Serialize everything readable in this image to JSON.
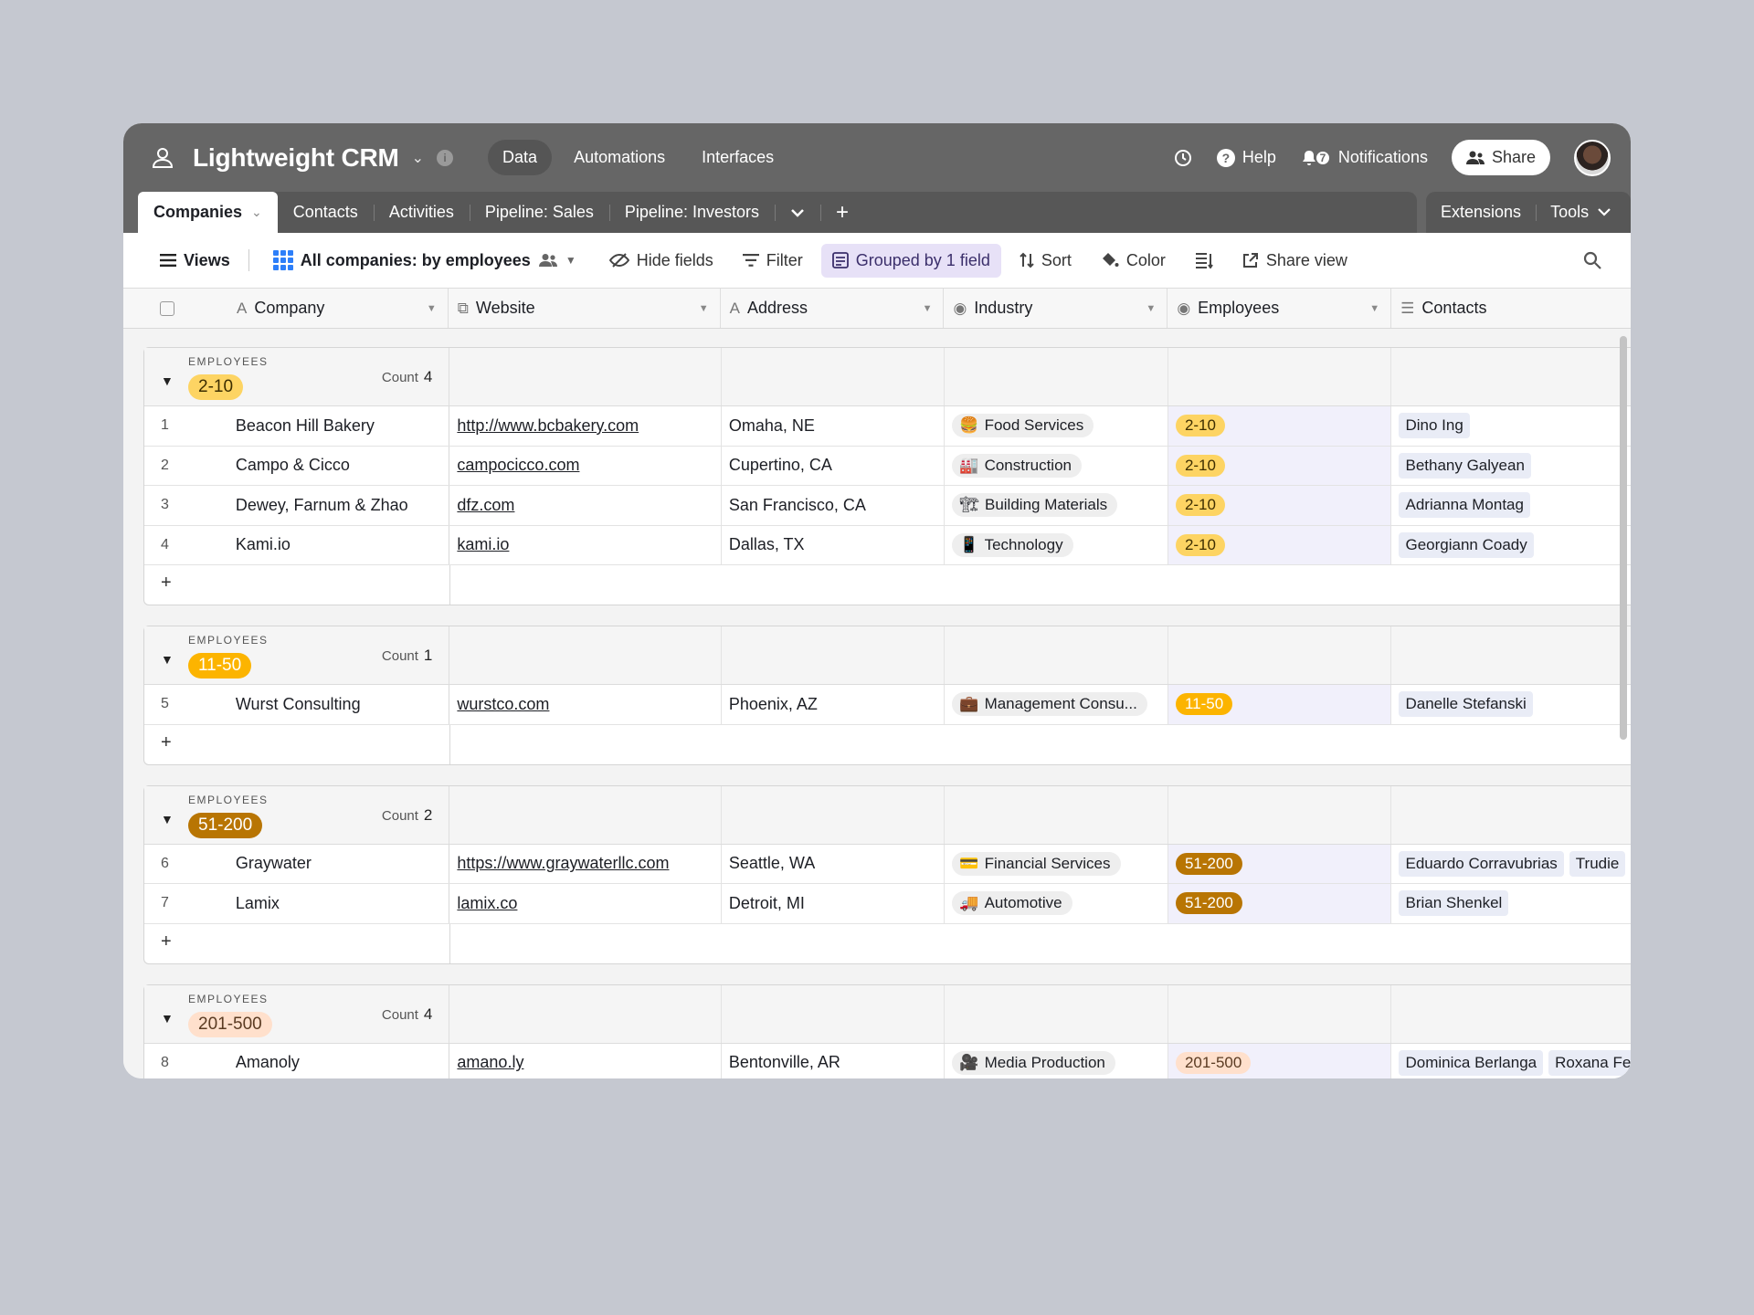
{
  "app": {
    "title": "Lightweight CRM",
    "nav": [
      "Data",
      "Automations",
      "Interfaces"
    ],
    "help": "Help",
    "notifications": "Notifications",
    "notification_count": "7",
    "share": "Share"
  },
  "tabs": {
    "items": [
      "Companies",
      "Contacts",
      "Activities",
      "Pipeline: Sales",
      "Pipeline: Investors"
    ],
    "extensions": "Extensions",
    "tools": "Tools"
  },
  "toolbar": {
    "views": "Views",
    "view_name": "All companies: by employees",
    "hide_fields": "Hide fields",
    "filter": "Filter",
    "grouped": "Grouped by 1 field",
    "sort": "Sort",
    "color": "Color",
    "share_view": "Share view"
  },
  "columns": [
    "Company",
    "Website",
    "Address",
    "Industry",
    "Employees",
    "Contacts"
  ],
  "group_label": "EMPLOYEES",
  "count_label": "Count",
  "groups": [
    {
      "value": "2-10",
      "count": "4",
      "rows": [
        {
          "n": "1",
          "company": "Beacon Hill Bakery",
          "website": "http://www.bcbakery.com",
          "address": "Omaha, NE",
          "industry_icon": "🍔",
          "industry": "Food Services",
          "employees": "2-10",
          "contacts": [
            "Dino Ing"
          ]
        },
        {
          "n": "2",
          "company": "Campo & Cicco",
          "website": "campocicco.com",
          "address": "Cupertino, CA",
          "industry_icon": "🏭",
          "industry": "Construction",
          "employees": "2-10",
          "contacts": [
            "Bethany Galyean"
          ]
        },
        {
          "n": "3",
          "company": "Dewey, Farnum & Zhao",
          "website": "dfz.com",
          "address": "San Francisco, CA",
          "industry_icon": "🏗",
          "industry": "Building Materials",
          "employees": "2-10",
          "contacts": [
            "Adrianna Montag"
          ]
        },
        {
          "n": "4",
          "company": "Kami.io",
          "website": "kami.io",
          "address": "Dallas, TX",
          "industry_icon": "📱",
          "industry": "Technology",
          "employees": "2-10",
          "contacts": [
            "Georgiann Coady"
          ]
        }
      ]
    },
    {
      "value": "11-50",
      "count": "1",
      "rows": [
        {
          "n": "5",
          "company": "Wurst Consulting",
          "website": "wurstco.com",
          "address": "Phoenix, AZ",
          "industry_icon": "💼",
          "industry": "Management Consu...",
          "employees": "11-50",
          "contacts": [
            "Danelle Stefanski"
          ]
        }
      ]
    },
    {
      "value": "51-200",
      "count": "2",
      "rows": [
        {
          "n": "6",
          "company": "Graywater",
          "website": "https://www.graywaterllc.com",
          "address": "Seattle, WA",
          "industry_icon": "💳",
          "industry": "Financial Services",
          "employees": "51-200",
          "contacts": [
            "Eduardo Corravubrias",
            "Trudie"
          ]
        },
        {
          "n": "7",
          "company": "Lamix",
          "website": "lamix.co",
          "address": "Detroit, MI",
          "industry_icon": "🚚",
          "industry": "Automotive",
          "employees": "51-200",
          "contacts": [
            "Brian Shenkel"
          ]
        }
      ]
    },
    {
      "value": "201-500",
      "count": "4",
      "rows": [
        {
          "n": "8",
          "company": "Amanoly",
          "website": "amano.ly",
          "address": "Bentonville, AR",
          "industry_icon": "🎥",
          "industry": "Media Production",
          "employees": "201-500",
          "contacts": [
            "Dominica Berlanga",
            "Roxana Fe"
          ]
        }
      ]
    }
  ],
  "colors": {
    "topbar": "#666666",
    "tabstrip": "#575757",
    "grouped_highlight": "#e7e1f7",
    "pill_2_10": "#fdd463",
    "pill_11_50": "#fcb400",
    "pill_51_200": "#b87503",
    "pill_201_500": "#ffe0cc"
  }
}
